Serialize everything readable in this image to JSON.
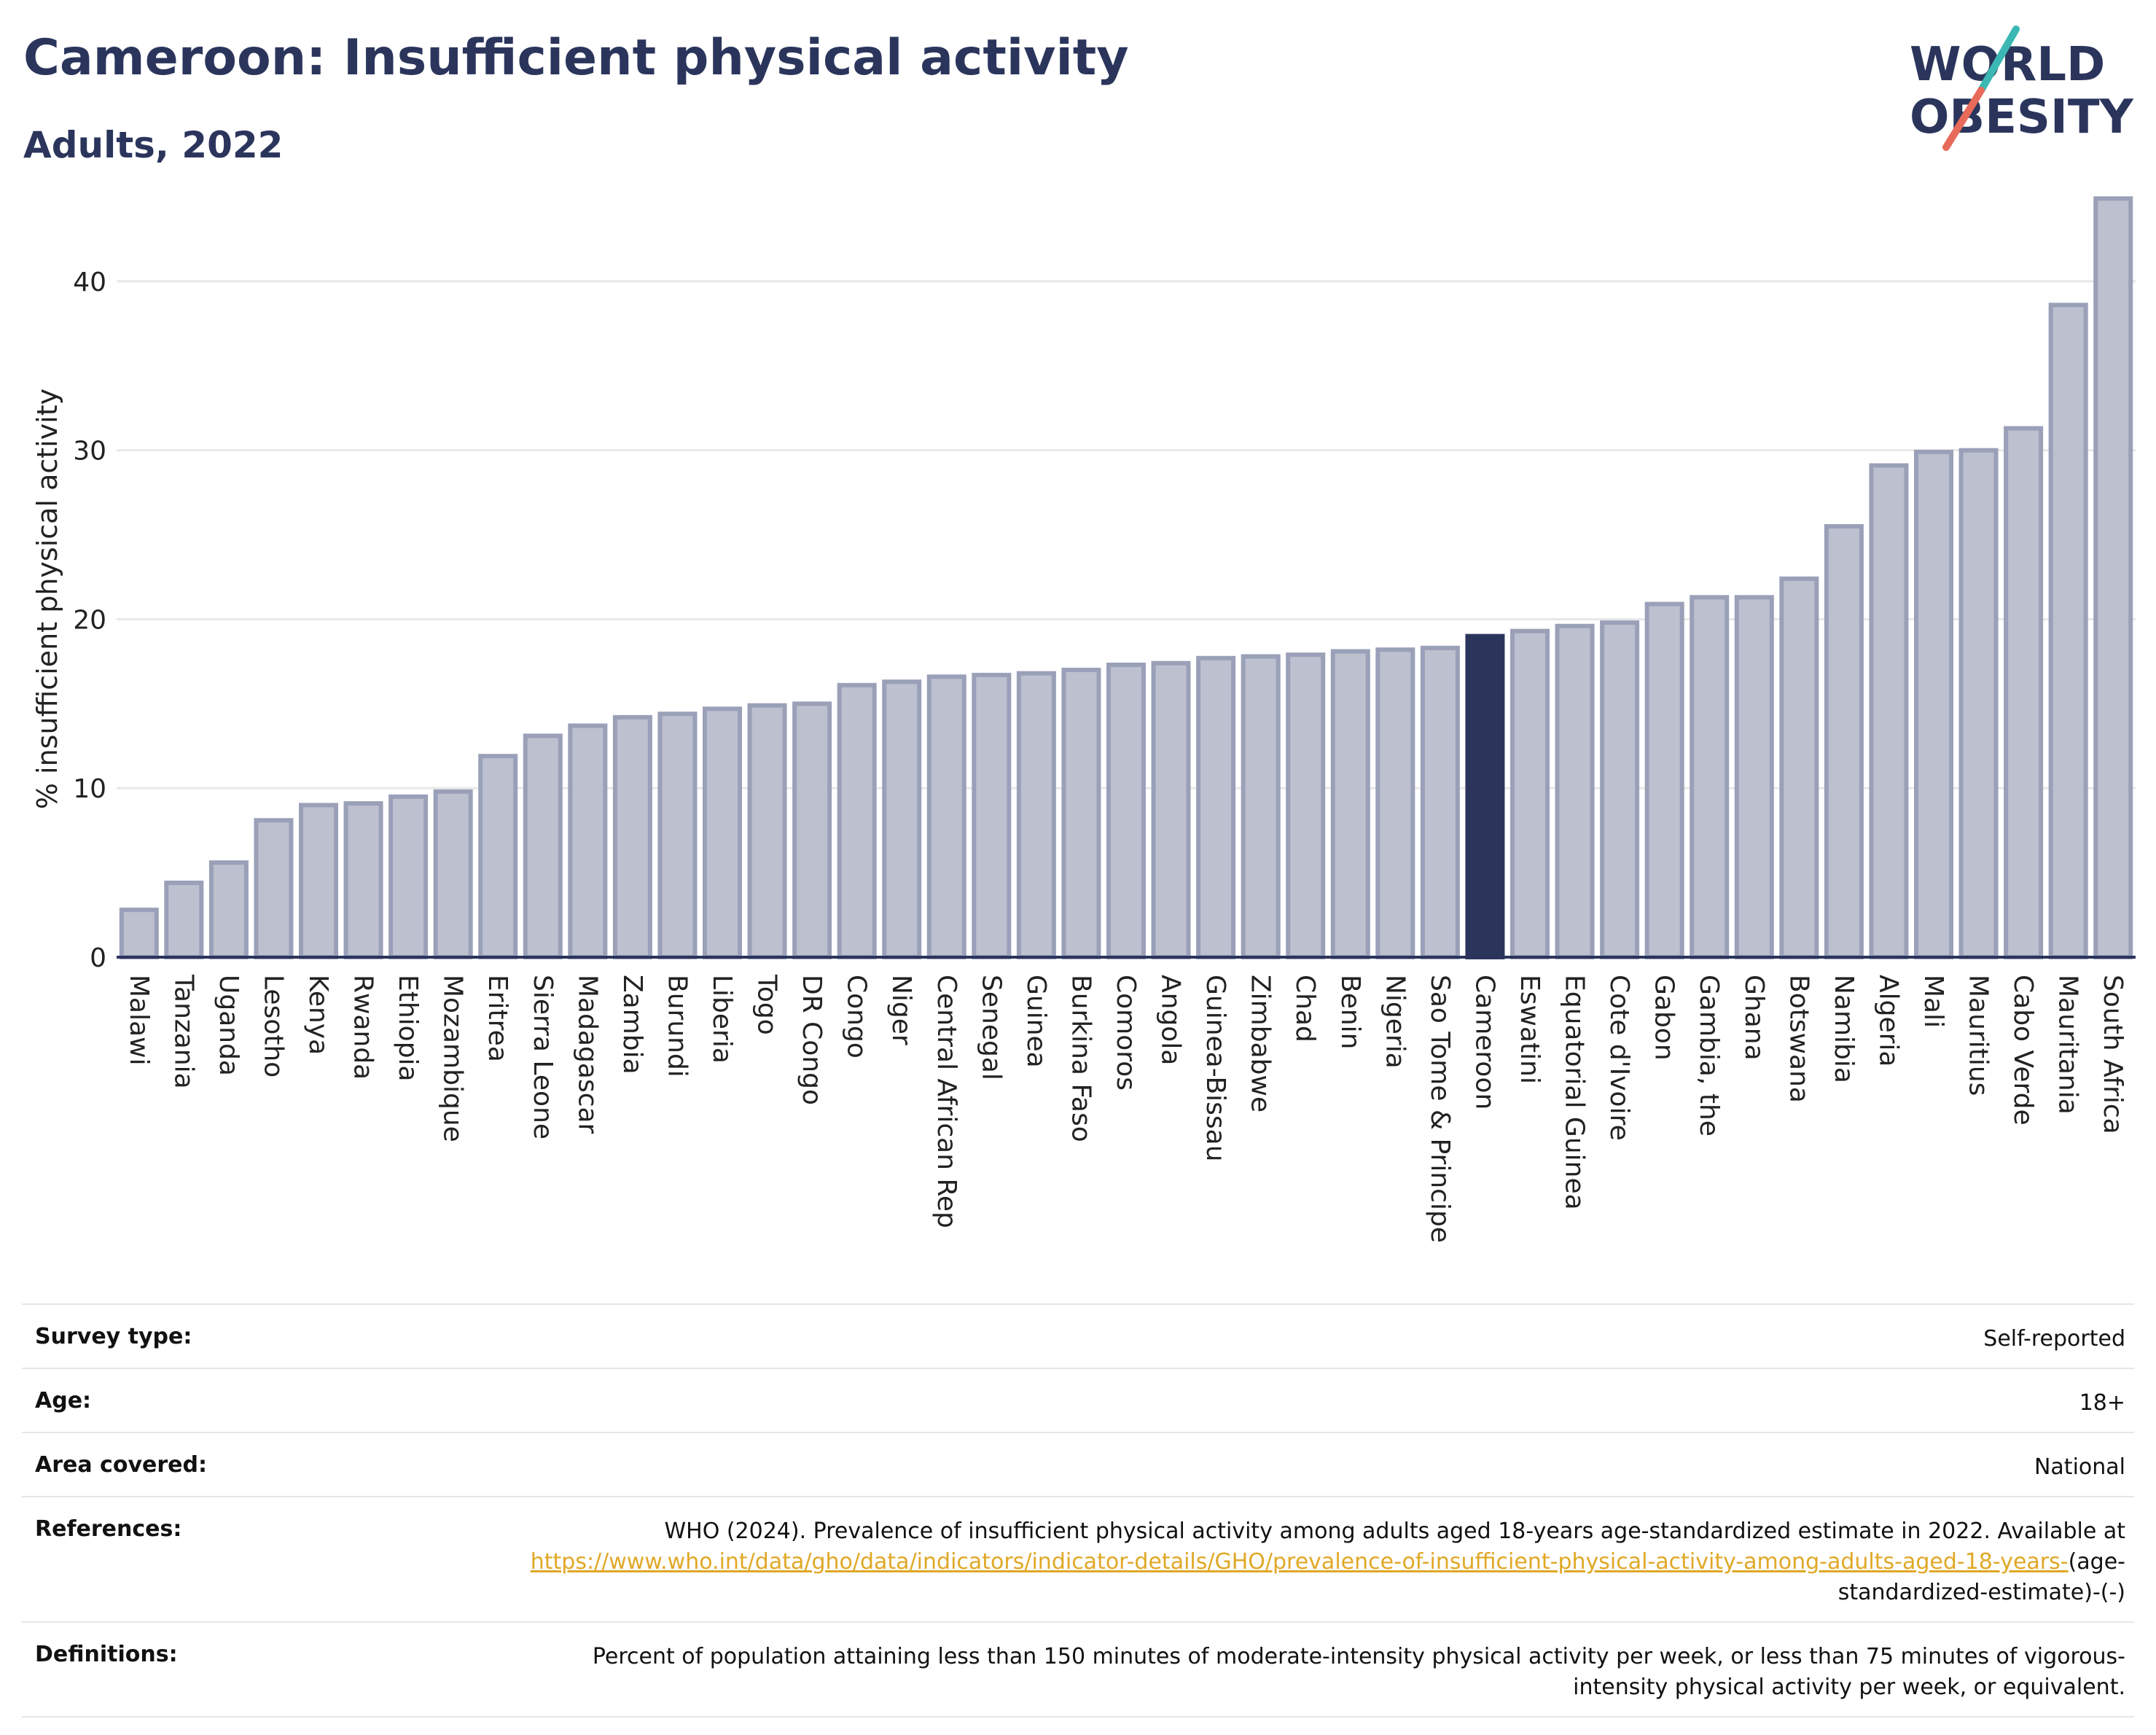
{
  "header": {
    "title": "Cameroon: Insufficient physical activity",
    "subtitle": "Adults, 2022"
  },
  "logo": {
    "line1": "WORLD",
    "line2": "OBESITY",
    "slash_colors": [
      "#3bb8b3",
      "#e86a5a"
    ]
  },
  "colors": {
    "bar": "#bcc0cf",
    "bar_border": "#9aa0b8",
    "highlight": "#2b355c",
    "text": "#2b355c"
  },
  "chart_data": {
    "type": "bar",
    "title": "Cameroon: Insufficient physical activity",
    "subtitle": "Adults, 2022",
    "ylabel": "% insufficient physical activity",
    "xlabel": "",
    "ylim": [
      0,
      45
    ],
    "yticks": [
      0,
      10,
      20,
      30,
      40
    ],
    "grid": true,
    "highlight": "Cameroon",
    "categories": [
      "Malawi",
      "Tanzania",
      "Uganda",
      "Lesotho",
      "Kenya",
      "Rwanda",
      "Ethiopia",
      "Mozambique",
      "Eritrea",
      "Sierra Leone",
      "Madagascar",
      "Zambia",
      "Burundi",
      "Liberia",
      "Togo",
      "DR Congo",
      "Congo",
      "Niger",
      "Central African Rep",
      "Senegal",
      "Guinea",
      "Burkina Faso",
      "Comoros",
      "Angola",
      "Guinea-Bissau",
      "Zimbabwe",
      "Chad",
      "Benin",
      "Nigeria",
      "Sao Tome & Principe",
      "Cameroon",
      "Eswatini",
      "Equatorial Guinea",
      "Cote d'Ivoire",
      "Gabon",
      "Gambia, the",
      "Ghana",
      "Botswana",
      "Namibia",
      "Algeria",
      "Mali",
      "Mauritius",
      "Cabo Verde",
      "Mauritania",
      "South Africa"
    ],
    "values": [
      2.8,
      4.4,
      5.6,
      8.1,
      9.0,
      9.1,
      9.5,
      9.8,
      11.9,
      13.1,
      13.7,
      14.2,
      14.4,
      14.7,
      14.9,
      15.0,
      16.1,
      16.3,
      16.6,
      16.7,
      16.8,
      17.0,
      17.3,
      17.4,
      17.7,
      17.8,
      17.9,
      18.1,
      18.2,
      18.3,
      19.0,
      19.3,
      19.6,
      19.8,
      20.9,
      21.3,
      21.3,
      22.4,
      25.5,
      29.1,
      29.9,
      30.0,
      31.3,
      38.6,
      44.9
    ]
  },
  "info": {
    "survey_type_label": "Survey type:",
    "survey_type_value": "Self-reported",
    "age_label": "Age:",
    "age_value": "18+",
    "area_label": "Area covered:",
    "area_value": "National",
    "references_label": "References:",
    "references_text": "WHO (2024). Prevalence of insufficient physical activity among adults aged 18-years age-standardized estimate in 2022. Available at",
    "references_link": "https://www.who.int/data/gho/data/indicators/indicator-details/GHO/prevalence-of-insufficient-physical-activity-among-adults-aged-18-years-",
    "references_suffix": "(age-standardized-estimate)-(-)",
    "definitions_label": "Definitions:",
    "definitions_value": "Percent of population attaining less than 150 minutes of moderate-intensity physical activity per week, or less than 75 minutes of vigorous-intensity physical activity per week, or equivalent."
  }
}
